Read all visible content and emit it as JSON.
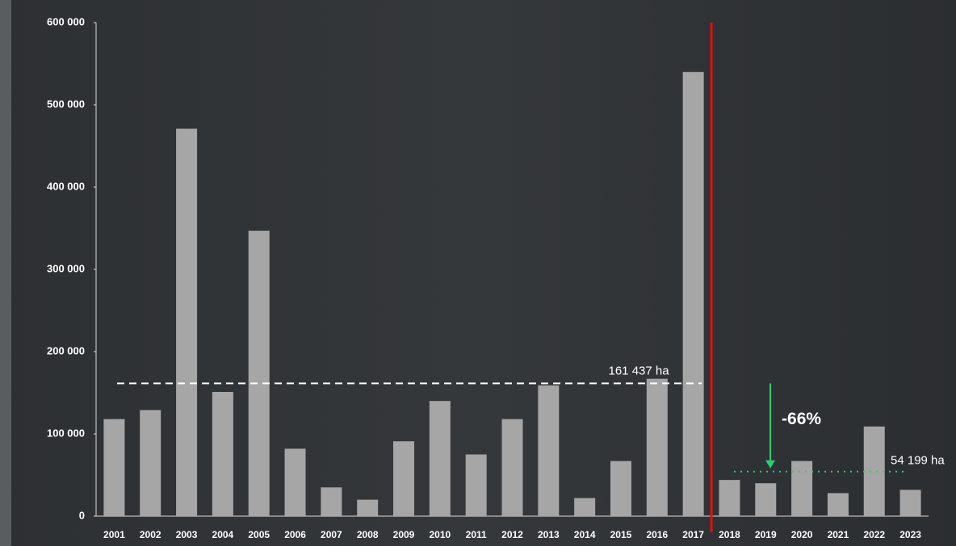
{
  "chart_data": {
    "type": "bar",
    "categories": [
      "2001",
      "2002",
      "2003",
      "2004",
      "2005",
      "2006",
      "2007",
      "2008",
      "2009",
      "2010",
      "2011",
      "2012",
      "2013",
      "2014",
      "2015",
      "2016",
      "2017",
      "2018",
      "2019",
      "2020",
      "2021",
      "2022",
      "2023"
    ],
    "values": [
      118000,
      129000,
      471000,
      151000,
      347000,
      82000,
      35000,
      20000,
      91000,
      140000,
      75000,
      118000,
      159000,
      22000,
      67000,
      167000,
      540000,
      44000,
      40000,
      67000,
      28000,
      109000,
      32000
    ],
    "color": "#a6a6a6",
    "ylim": [
      0,
      600000
    ],
    "yticks": [
      {
        "value": 0,
        "label": "0"
      },
      {
        "value": 100000,
        "label": "100 000"
      },
      {
        "value": 200000,
        "label": "200 000"
      },
      {
        "value": 300000,
        "label": "300 000"
      },
      {
        "value": 400000,
        "label": "400 000"
      },
      {
        "value": 500000,
        "label": "500 000"
      },
      {
        "value": 600000,
        "label": "600 000"
      }
    ],
    "reference_lines": [
      {
        "value": 161437,
        "label": "161 437 ha",
        "color": "#ffffff"
      },
      {
        "value": 54199,
        "label": "54 199 ha",
        "color": "#2ecc71"
      }
    ],
    "change_label": "-66%",
    "divider_color": "#e01010"
  }
}
